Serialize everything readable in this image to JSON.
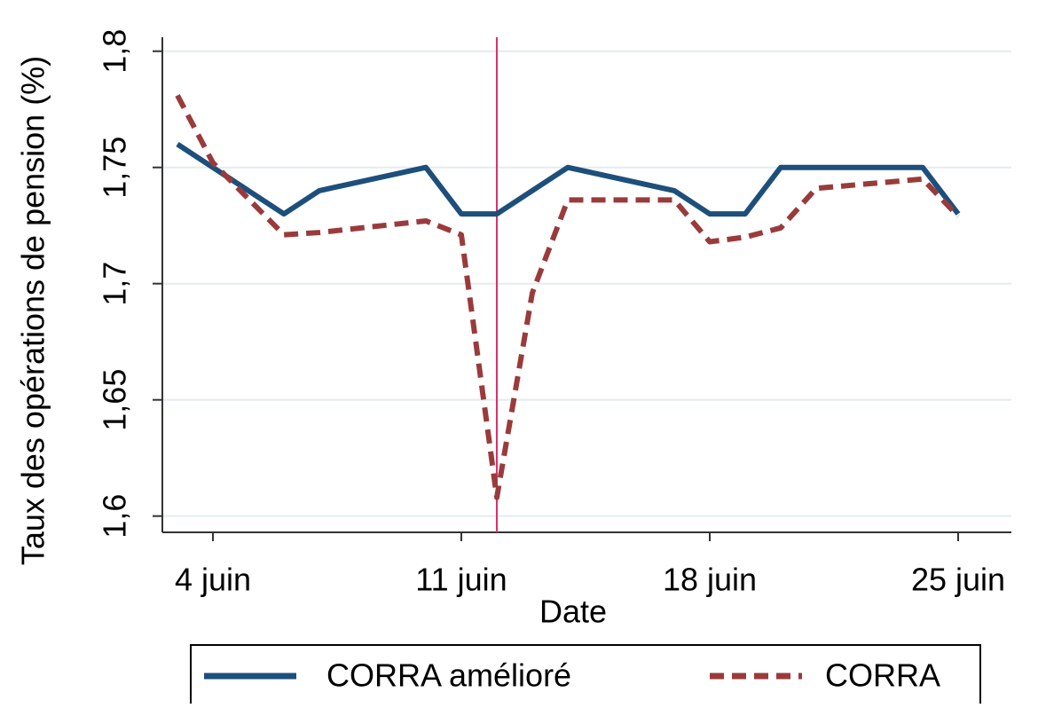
{
  "chart_data": {
    "type": "line",
    "y_label": "Taux des opérations de pension (%)",
    "x_label": "Date",
    "x": [
      3,
      4,
      6,
      7,
      10,
      11,
      12,
      13,
      14,
      17,
      18,
      19,
      20,
      21,
      24,
      25
    ],
    "series": [
      {
        "name": "CORRA amélioré",
        "color": "#1d4f7c",
        "dash": false,
        "values": [
          1.76,
          1.75,
          1.73,
          1.74,
          1.75,
          1.73,
          1.73,
          1.74,
          1.75,
          1.74,
          1.73,
          1.73,
          1.75,
          1.75,
          1.75,
          1.73
        ]
      },
      {
        "name": "CORRA",
        "color": "#9a3b3b",
        "dash": true,
        "values": [
          1.781,
          1.752,
          1.721,
          1.722,
          1.727,
          1.721,
          1.608,
          1.696,
          1.736,
          1.736,
          1.718,
          1.72,
          1.724,
          1.741,
          1.745,
          1.729
        ]
      }
    ],
    "vline": 12,
    "vline_color": "#d6336c",
    "xlim": [
      2.575,
      26.5
    ],
    "xticks": [
      {
        "value": 4,
        "label": "4 juin"
      },
      {
        "value": 11,
        "label": "11 juin"
      },
      {
        "value": 18,
        "label": "18 juin"
      },
      {
        "value": 25,
        "label": "25 juin"
      }
    ],
    "ylim": [
      1.593,
      1.806
    ],
    "yticks": [
      {
        "value": 1.6,
        "label": "1,6"
      },
      {
        "value": 1.65,
        "label": "1,65"
      },
      {
        "value": 1.7,
        "label": "1,7"
      },
      {
        "value": 1.75,
        "label": "1,75"
      },
      {
        "value": 1.8,
        "label": "1,8"
      }
    ],
    "grid": true,
    "legend": "bottom"
  }
}
